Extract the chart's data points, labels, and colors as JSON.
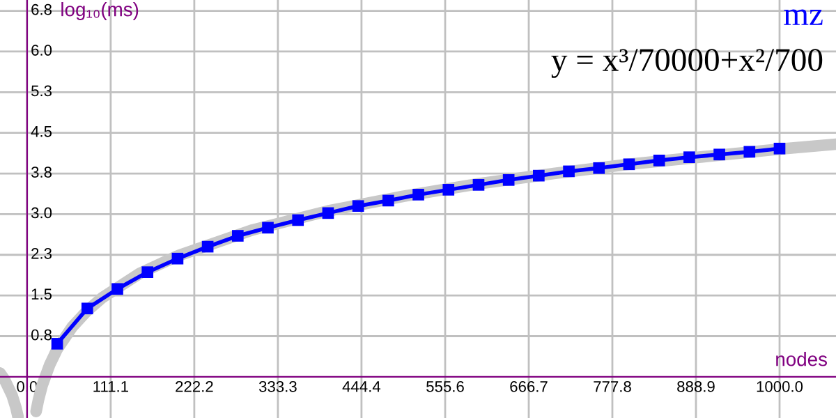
{
  "chart_data": {
    "type": "line",
    "xlabel": "nodes",
    "ylabel": "log₁₀(ms)",
    "annotations": [
      "y = x³/70000+x²/700"
    ],
    "xlim": [
      -36,
      1075
    ],
    "ylim": [
      -0.76,
      6.95
    ],
    "xticks": [
      {
        "value": 0,
        "label": "0.0"
      },
      111.1,
      222.2,
      333.3,
      444.4,
      555.6,
      666.7,
      777.8,
      888.9,
      {
        "value": 1000,
        "label": "1000.0"
      }
    ],
    "yticks": [
      {
        "value": 0.75,
        "label": "0.8"
      },
      {
        "value": 1.5,
        "label": "1.5"
      },
      {
        "value": 2.25,
        "label": "2.3"
      },
      {
        "value": 3.0,
        "label": "3.0"
      },
      {
        "value": 3.75,
        "label": "3.8"
      },
      {
        "value": 4.5,
        "label": "4.5"
      },
      {
        "value": 5.25,
        "label": "5.3"
      },
      {
        "value": 6.0,
        "label": "6.0"
      },
      {
        "value": 6.75,
        "label": "6.8"
      }
    ],
    "grid": true,
    "series": [
      {
        "color": "#c8c8c8",
        "marker": "none",
        "x": [
          -36,
          -30,
          -20,
          -15,
          -12,
          0,
          12,
          15,
          20,
          30,
          40,
          60,
          80,
          100,
          150,
          200,
          300,
          400,
          500,
          600,
          700,
          800,
          900,
          1000,
          1075
        ],
        "values": [
          0.07,
          -0.05,
          -0.34,
          -0.56,
          -0.74,
          null,
          -0.64,
          -0.43,
          -0.16,
          0.22,
          0.51,
          0.92,
          1.22,
          1.46,
          1.91,
          2.23,
          2.71,
          3.06,
          3.33,
          3.56,
          3.75,
          3.92,
          4.06,
          4.2,
          4.29
        ]
      },
      {
        "name": "mz",
        "color": "#0000ff",
        "marker": "square",
        "x": [
          40,
          80,
          120,
          160,
          200,
          240,
          280,
          320,
          360,
          400,
          440,
          480,
          520,
          560,
          600,
          640,
          680,
          720,
          760,
          800,
          840,
          880,
          920,
          960,
          1000
        ],
        "values": [
          0.61,
          1.26,
          1.62,
          1.93,
          2.18,
          2.4,
          2.6,
          2.75,
          2.89,
          3.02,
          3.15,
          3.25,
          3.36,
          3.45,
          3.54,
          3.63,
          3.71,
          3.79,
          3.85,
          3.92,
          3.99,
          4.05,
          4.1,
          4.15,
          4.21
        ]
      }
    ]
  }
}
